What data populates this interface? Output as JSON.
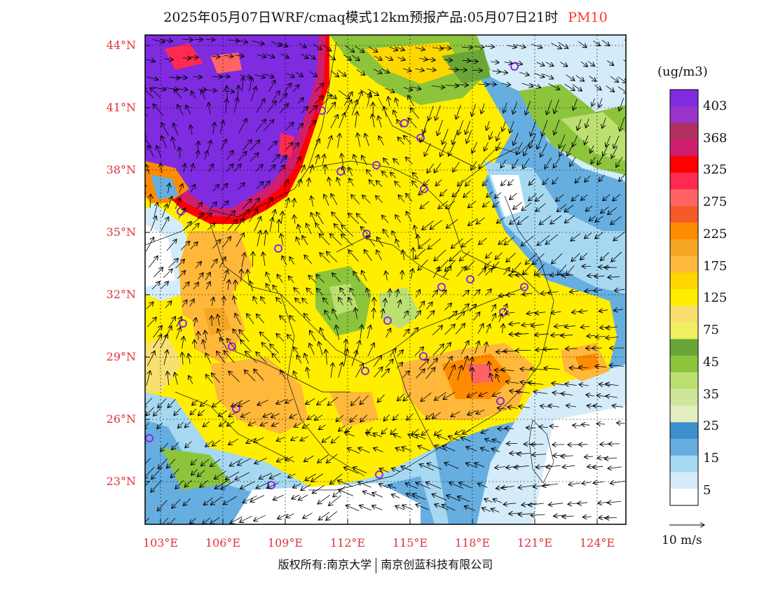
{
  "title": {
    "main": "2025年05月07日WRF/cmaq模式12km预报产品:05月07日21时",
    "pollutant": "PM10"
  },
  "axes": {
    "lat_labels": [
      "44°N",
      "41°N",
      "38°N",
      "35°N",
      "32°N",
      "29°N",
      "26°N",
      "23°N"
    ],
    "lon_labels": [
      "103°E",
      "106°E",
      "109°E",
      "112°E",
      "115°E",
      "118°E",
      "121°E",
      "124°E"
    ]
  },
  "legend": {
    "unit": "(ug/m3)",
    "labels": [
      "403",
      "368",
      "325",
      "275",
      "225",
      "175",
      "125",
      "75",
      "45",
      "35",
      "25",
      "15",
      "5"
    ],
    "colors": [
      "#7f2be0",
      "#9a35cc",
      "#b03060",
      "#d01e6e",
      "#ff0000",
      "#ff2a50",
      "#ff6464",
      "#f55a28",
      "#ff8c00",
      "#f5a623",
      "#ffb83a",
      "#ffd700",
      "#ffee00",
      "#f7e070",
      "#f0f060",
      "#6aa637",
      "#8cc43c",
      "#bce070",
      "#cfe59a",
      "#e2edc0",
      "#3f8fcf",
      "#66aee0",
      "#a6d8f2",
      "#d4ecfa",
      "#ffffff"
    ]
  },
  "wind_reference": "10 m/s",
  "copyright": {
    "left": "版权所有:南京大学",
    "right": "南京创蓝科技有限公司"
  }
}
